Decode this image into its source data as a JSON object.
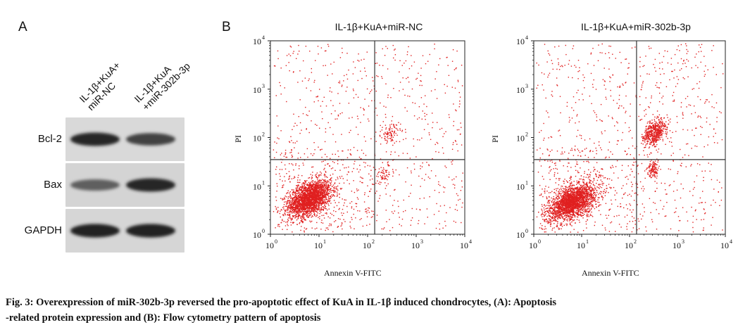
{
  "panel_a": {
    "letter": "A",
    "lanes": [
      "IL-1β+KuA+\nmiR-NC",
      "IL-1β+KuA\n+miR-302b-3p"
    ],
    "proteins": [
      {
        "label": "Bcl-2",
        "band_intensity": [
          0.9,
          0.75
        ]
      },
      {
        "label": "Bax",
        "band_intensity": [
          0.6,
          0.9
        ]
      },
      {
        "label": "GAPDH",
        "band_intensity": [
          0.92,
          0.92
        ]
      }
    ]
  },
  "panel_b": {
    "letter": "B",
    "plots": [
      {
        "title": "IL-1β+KuA+miR-NC",
        "xlabel": "Annexin V-FITC",
        "ylabel": "PI",
        "gate": {
          "x": 140,
          "y": 35
        }
      },
      {
        "title": "IL-1β+KuA+miR-302b-3p",
        "xlabel": "Annexin V-FITC",
        "ylabel": "PI",
        "gate": {
          "x": 140,
          "y": 35
        }
      }
    ],
    "x_ticks": [
      "10",
      "10",
      "10",
      "10",
      "10"
    ],
    "x_tick_exps": [
      "0",
      "1",
      "2",
      "3",
      "4"
    ],
    "y_ticks": [
      "10",
      "10",
      "10",
      "10",
      "10"
    ],
    "y_tick_exps": [
      "0",
      "1",
      "2",
      "3",
      "4"
    ],
    "dot_color": "#e02020"
  },
  "caption": {
    "line1": "Fig. 3: Overexpression of miR-302b-3p reversed the pro-apoptotic effect of KuA in IL-1β induced chondrocytes, (A): Apoptosis",
    "line2": "-related protein expression and (B): Flow cytometry pattern of apoptosis"
  }
}
